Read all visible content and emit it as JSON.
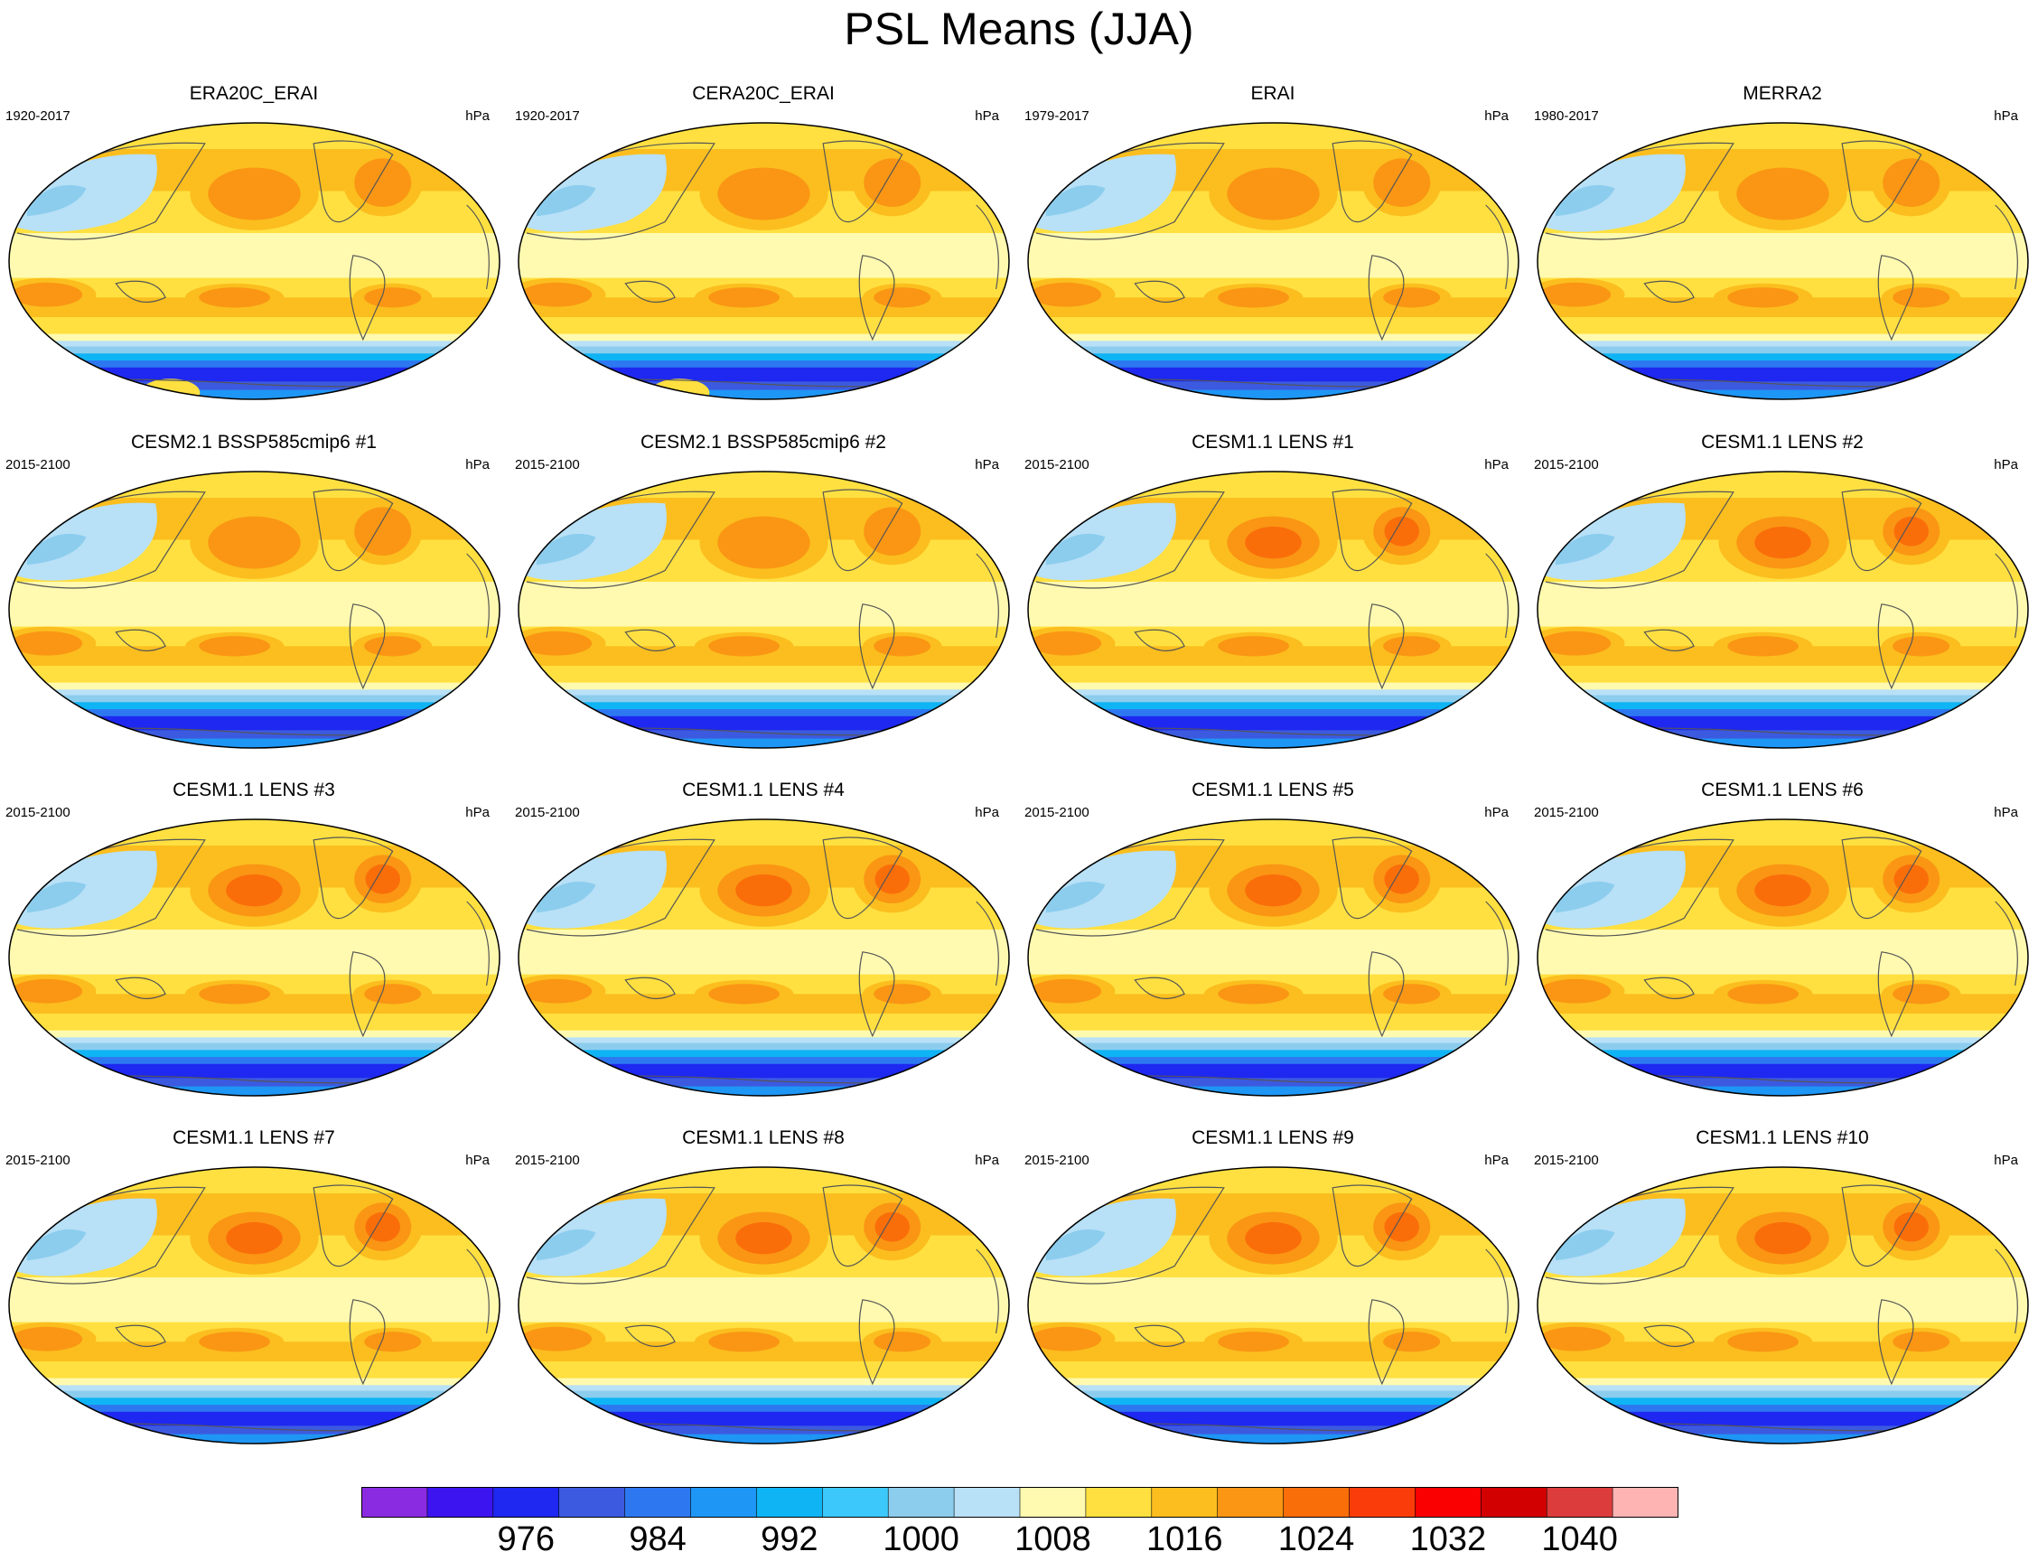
{
  "figure": {
    "title": "PSL Means (JJA)",
    "unit_label": "hPa"
  },
  "panels": [
    {
      "title": "ERA20C_ERAI",
      "period": "1920-2017",
      "style": "reanalysis-20c",
      "max_level": 12
    },
    {
      "title": "CERA20C_ERAI",
      "period": "1920-2017",
      "style": "reanalysis-20c",
      "max_level": 12
    },
    {
      "title": "ERAI",
      "period": "1979-2017",
      "style": "reanalysis",
      "max_level": 12
    },
    {
      "title": "MERRA2",
      "period": "1980-2017",
      "style": "merra",
      "max_level": 12
    },
    {
      "title": "CESM2.1 BSSP585cmip6 #1",
      "period": "2015-2100",
      "style": "cesm2",
      "max_level": 12
    },
    {
      "title": "CESM2.1 BSSP585cmip6 #2",
      "period": "2015-2100",
      "style": "cesm2",
      "max_level": 12
    },
    {
      "title": "CESM1.1 LENS #1",
      "period": "2015-2100",
      "style": "lens",
      "max_level": 13
    },
    {
      "title": "CESM1.1 LENS #2",
      "period": "2015-2100",
      "style": "lens",
      "max_level": 13
    },
    {
      "title": "CESM1.1 LENS #3",
      "period": "2015-2100",
      "style": "lens",
      "max_level": 13
    },
    {
      "title": "CESM1.1 LENS #4",
      "period": "2015-2100",
      "style": "lens",
      "max_level": 13
    },
    {
      "title": "CESM1.1 LENS #5",
      "period": "2015-2100",
      "style": "lens",
      "max_level": 13
    },
    {
      "title": "CESM1.1 LENS #6",
      "period": "2015-2100",
      "style": "lens",
      "max_level": 13
    },
    {
      "title": "CESM1.1 LENS #7",
      "period": "2015-2100",
      "style": "lens",
      "max_level": 13
    },
    {
      "title": "CESM1.1 LENS #8",
      "period": "2015-2100",
      "style": "lens",
      "max_level": 13
    },
    {
      "title": "CESM1.1 LENS #9",
      "period": "2015-2100",
      "style": "lens",
      "max_level": 13
    },
    {
      "title": "CESM1.1 LENS #10",
      "period": "2015-2100",
      "style": "lens",
      "max_level": 13
    }
  ],
  "colorbar": {
    "colors": [
      "#8a2be2",
      "#3c14f0",
      "#1e28f0",
      "#3c5ae0",
      "#2d78f0",
      "#1e96f5",
      "#0fb4f5",
      "#3cc8fa",
      "#8ccdee",
      "#b8e0f6",
      "#fffab0",
      "#ffe040",
      "#fbbe1e",
      "#fa9614",
      "#fa6e0a",
      "#fa3c0a",
      "#fa0000",
      "#d20000",
      "#dc3c3c",
      "#ffb4b4"
    ],
    "tick_labels": [
      "976",
      "984",
      "992",
      "1000",
      "1008",
      "1016",
      "1024",
      "1032",
      "1040"
    ],
    "tick_boundaries": [
      2,
      4,
      6,
      8,
      10,
      12,
      14,
      16,
      18
    ]
  }
}
